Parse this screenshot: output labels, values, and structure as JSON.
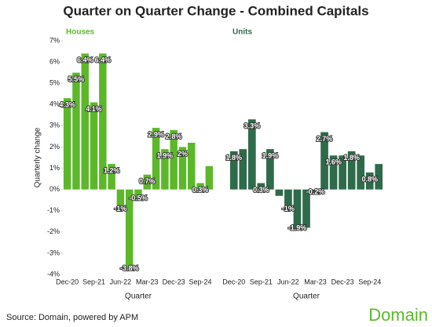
{
  "title": "Quarter on Quarter Change - Combined Capitals",
  "source": "Source: Domain, powered by APM",
  "brand": "Domain",
  "chart_data": [
    {
      "type": "bar",
      "subtitle": "Houses",
      "xlabel": "Quarter",
      "ylabel": "Quarterly change",
      "color": "#5cb82a",
      "categories": [
        "Dec-20",
        null,
        null,
        "Sep-21",
        null,
        null,
        "Jun-22",
        null,
        null,
        "Mar-23",
        null,
        null,
        "Dec-23",
        null,
        null,
        "Sep-24",
        null
      ],
      "values": [
        4.3,
        5.5,
        6.4,
        4.1,
        6.4,
        1.2,
        -1,
        -3.8,
        -0.5,
        0.7,
        2.9,
        1.9,
        2.8,
        2,
        2.2,
        0.3,
        1.1
      ],
      "value_labels": [
        "4.3%",
        "5.5%",
        "6.4%",
        "4.1%",
        "6.4%",
        "1.2%",
        "-1%",
        "-3.8%",
        "-0.5%",
        "0.7%",
        "2.9%",
        "1.9%",
        "2.8%",
        "2%",
        null,
        "0.3%",
        null
      ],
      "ylim": [
        -4,
        7
      ],
      "yticks": [
        {
          "value": -4,
          "label": "-4%"
        },
        {
          "value": -3,
          "label": "-3%"
        },
        {
          "value": -2,
          "label": "-2%"
        },
        {
          "value": -1,
          "label": "-1%"
        },
        {
          "value": 0,
          "label": "0%"
        },
        {
          "value": 1,
          "label": "1%"
        },
        {
          "value": 2,
          "label": "2%"
        },
        {
          "value": 3,
          "label": "3%"
        },
        {
          "value": 4,
          "label": "4%"
        },
        {
          "value": 5,
          "label": "5%"
        },
        {
          "value": 6,
          "label": "6%"
        },
        {
          "value": 7,
          "label": "7%"
        }
      ]
    },
    {
      "type": "bar",
      "subtitle": "Units",
      "xlabel": "Quarter",
      "color": "#2e6b4a",
      "categories": [
        "Dec-20",
        null,
        null,
        "Sep-21",
        null,
        null,
        "Jun-22",
        null,
        null,
        "Mar-23",
        null,
        null,
        "Dec-23",
        null,
        null,
        "Sep-24",
        null
      ],
      "values": [
        1.8,
        1.9,
        3.3,
        0.3,
        1.9,
        -0.3,
        -1,
        -1.9,
        -1.8,
        -0.2,
        2.7,
        1.6,
        1.6,
        1.8,
        1.6,
        0.8,
        1.2
      ],
      "value_labels": [
        "1.8%",
        null,
        "3.3%",
        "0.3%",
        "1.9%",
        null,
        "-1%",
        "-1.9%",
        null,
        "-0.2%",
        "2.7%",
        "1.6%",
        null,
        "1.8%",
        null,
        "0.8%",
        null
      ],
      "ylim": [
        -4,
        7
      ]
    }
  ]
}
